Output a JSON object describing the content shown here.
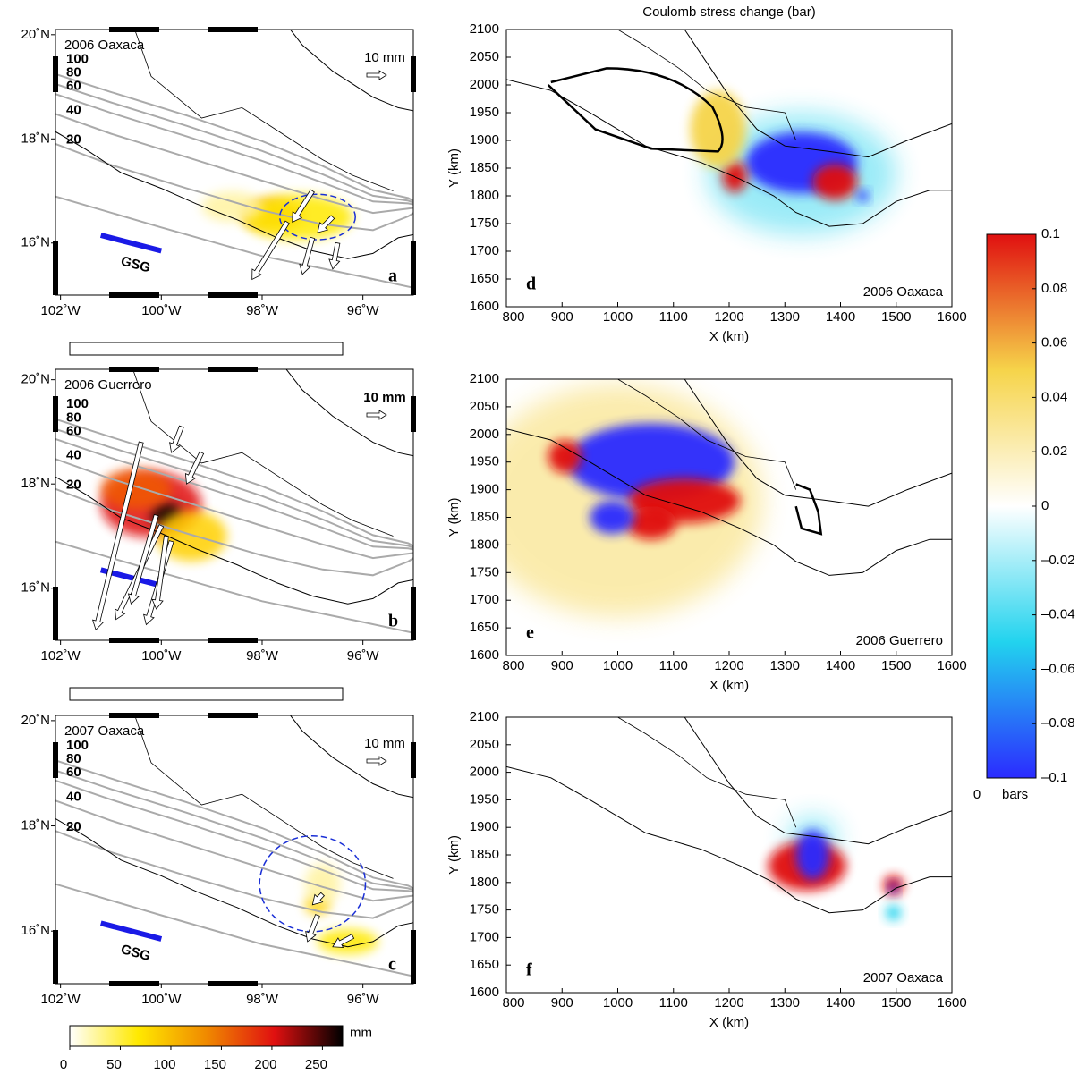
{
  "chart_data": [
    {
      "type": "map",
      "label": "2006 Oaxaca",
      "panel": "a",
      "xlim": [
        -102.1,
        -95
      ],
      "ylim": [
        15,
        20.1
      ],
      "xticks": [
        {
          "value": -102,
          "label": "102˚W"
        },
        {
          "value": -100,
          "label": "100˚W"
        },
        {
          "value": -98,
          "label": "98˚W"
        },
        {
          "value": -96,
          "label": "96˚W"
        }
      ],
      "yticks": [
        {
          "value": 16,
          "label": "16˚N"
        },
        {
          "value": 18,
          "label": "18˚N"
        },
        {
          "value": 20,
          "label": "20˚N"
        }
      ],
      "contour_labels": [
        "100",
        "80",
        "60",
        "40",
        "20"
      ],
      "scale_label": "10 mm",
      "trench_label": "GSG"
    },
    {
      "type": "map",
      "label": "2006 Guerrero",
      "panel": "b",
      "xlim": [
        -102.1,
        -95
      ],
      "ylim": [
        15,
        20.2
      ],
      "xticks": [
        {
          "value": -102,
          "label": "102˚W"
        },
        {
          "value": -100,
          "label": "100˚W"
        },
        {
          "value": -98,
          "label": "98˚W"
        },
        {
          "value": -96,
          "label": "96˚W"
        }
      ],
      "yticks": [
        {
          "value": 16,
          "label": "16˚N"
        },
        {
          "value": 18,
          "label": "18˚N"
        },
        {
          "value": 20,
          "label": "20˚N"
        }
      ],
      "contour_labels": [
        "100",
        "80",
        "60",
        "40",
        "20"
      ],
      "scale_label": "10 mm"
    },
    {
      "type": "map",
      "label": "2007 Oaxaca",
      "panel": "c",
      "xlim": [
        -102.1,
        -95
      ],
      "ylim": [
        15,
        20.1
      ],
      "xticks": [
        {
          "value": -102,
          "label": "102˚W"
        },
        {
          "value": -100,
          "label": "100˚W"
        },
        {
          "value": -98,
          "label": "98˚W"
        },
        {
          "value": -96,
          "label": "96˚W"
        }
      ],
      "yticks": [
        {
          "value": 16,
          "label": "16˚N"
        },
        {
          "value": 18,
          "label": "18˚N"
        },
        {
          "value": 20,
          "label": "20˚N"
        }
      ],
      "contour_labels": [
        "100",
        "80",
        "60",
        "40",
        "20"
      ],
      "scale_label": "10 mm",
      "trench_label": "GSG"
    },
    {
      "type": "heatmap",
      "title": "Coulomb stress change (bar)",
      "label": "2006 Oaxaca",
      "panel": "d",
      "xlabel": "X (km)",
      "ylabel": "Y (km)",
      "xlim": [
        800,
        1600
      ],
      "ylim": [
        1600,
        2100
      ],
      "xticks": [
        800,
        900,
        1000,
        1100,
        1200,
        1300,
        1400,
        1500,
        1600
      ],
      "yticks": [
        1600,
        1650,
        1700,
        1750,
        1800,
        1850,
        1900,
        1950,
        2000,
        2050,
        2100
      ]
    },
    {
      "type": "heatmap",
      "label": "2006 Guerrero",
      "panel": "e",
      "xlabel": "X (km)",
      "ylabel": "Y (km)",
      "xlim": [
        800,
        1600
      ],
      "ylim": [
        1600,
        2100
      ],
      "xticks": [
        800,
        900,
        1000,
        1100,
        1200,
        1300,
        1400,
        1500,
        1600
      ],
      "yticks": [
        1600,
        1650,
        1700,
        1750,
        1800,
        1850,
        1900,
        1950,
        2000,
        2050,
        2100
      ]
    },
    {
      "type": "heatmap",
      "label": "2007 Oaxaca",
      "panel": "f",
      "xlabel": "X (km)",
      "ylabel": "Y (km)",
      "xlim": [
        800,
        1600
      ],
      "ylim": [
        1600,
        2100
      ],
      "xticks": [
        800,
        900,
        1000,
        1100,
        1200,
        1300,
        1400,
        1500,
        1600
      ],
      "yticks": [
        1600,
        1650,
        1700,
        1750,
        1800,
        1850,
        1900,
        1950,
        2000,
        2050,
        2100
      ]
    },
    {
      "type": "colorbar",
      "orientation": "vertical",
      "lim": [
        -0.1,
        0.1
      ],
      "ticks": [
        {
          "value": -0.1,
          "label": "–0.1"
        },
        {
          "value": -0.08,
          "label": "–0.08"
        },
        {
          "value": -0.06,
          "label": "–0.06"
        },
        {
          "value": -0.04,
          "label": "–0.04"
        },
        {
          "value": -0.02,
          "label": "–0.02"
        },
        0,
        0.02,
        0.04,
        0.06,
        0.08,
        0.1
      ],
      "unit": "bars",
      "corner_label": "0",
      "colors": [
        "#2b2bff",
        "#22d3ee",
        "#ffffff",
        "#f6d44a",
        "#e01010"
      ]
    },
    {
      "type": "colorbar",
      "orientation": "horizontal",
      "lim": [
        0,
        270
      ],
      "ticks": [
        0,
        50,
        100,
        150,
        200,
        250
      ],
      "unit": "mm",
      "colors": [
        "#ffffff",
        "#ffe900",
        "#f08a00",
        "#e01010",
        "#000000"
      ]
    }
  ]
}
